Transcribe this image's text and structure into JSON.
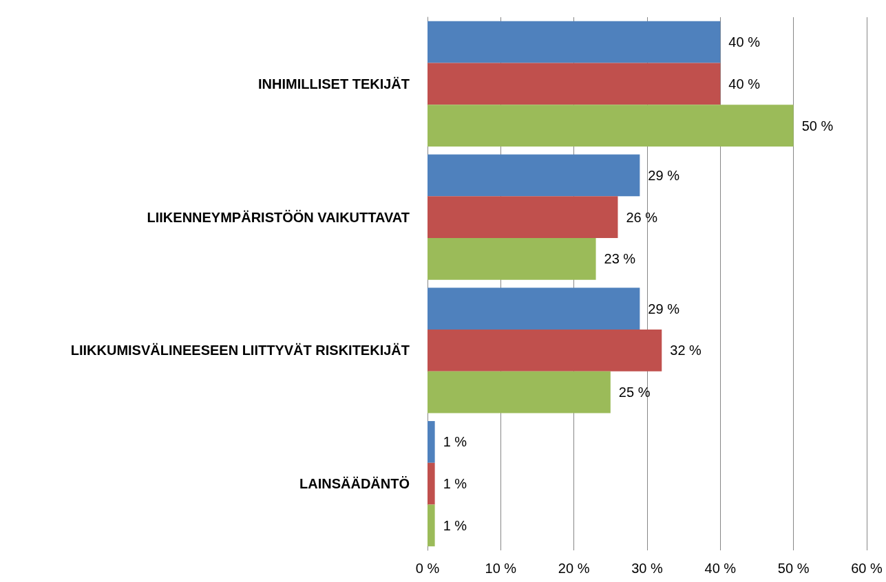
{
  "chart_data": {
    "type": "bar",
    "orientation": "horizontal",
    "categories": [
      "INHIMILLISET TEKIJÄT",
      "LIIKENNEYMPÄRISTÖÖN VAIKUTTAVAT",
      "LIIKKUMISVÄLINEESEEN LIITTYVÄT RISKITEKIJÄT",
      "LAINSÄÄDÄNTÖ"
    ],
    "series": [
      {
        "color": "#4f81bd",
        "values": [
          40,
          29,
          29,
          1
        ],
        "value_labels": [
          "40 %",
          "29 %",
          "29 %",
          "1 %"
        ]
      },
      {
        "color": "#c0504d",
        "values": [
          40,
          26,
          32,
          1
        ],
        "value_labels": [
          "40 %",
          "26 %",
          "32 %",
          "1 %"
        ]
      },
      {
        "color": "#9bbb59",
        "values": [
          50,
          23,
          25,
          1
        ],
        "value_labels": [
          "50 %",
          "23 %",
          "25 %",
          "1 %"
        ]
      }
    ],
    "xlim": [
      0,
      60
    ],
    "xticks": [
      {
        "value": 0,
        "label": "0 %"
      },
      {
        "value": 10,
        "label": "10 %"
      },
      {
        "value": 20,
        "label": "20 %"
      },
      {
        "value": 30,
        "label": "30 %"
      },
      {
        "value": 40,
        "label": "40 %"
      },
      {
        "value": 50,
        "label": "50 %"
      },
      {
        "value": 60,
        "label": "60 %"
      }
    ],
    "grid": "x"
  }
}
